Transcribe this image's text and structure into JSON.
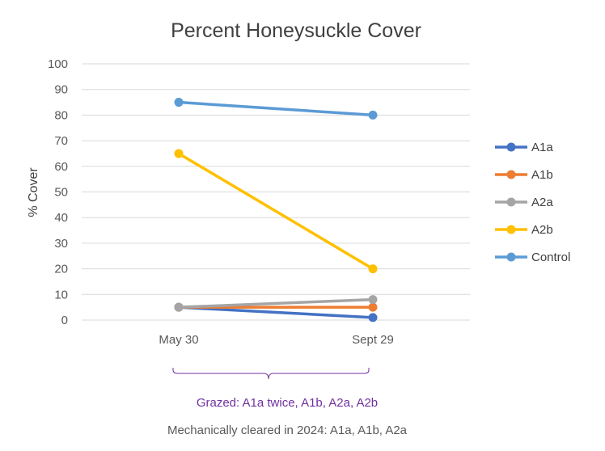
{
  "chart_data": {
    "type": "line",
    "title": "Percent Honeysuckle Cover",
    "ylabel": "% Cover",
    "xlabel": "",
    "categories": [
      "May 30",
      "Sept 29"
    ],
    "ylim": [
      0,
      100
    ],
    "yticks": [
      0,
      10,
      20,
      30,
      40,
      50,
      60,
      70,
      80,
      90,
      100
    ],
    "grid": true,
    "legend_position": "right",
    "series": [
      {
        "name": "A1a",
        "color": "#4472C4",
        "values": [
          5,
          1
        ]
      },
      {
        "name": "A1b",
        "color": "#ED7D31",
        "values": [
          5,
          5
        ]
      },
      {
        "name": "A2a",
        "color": "#A5A5A5",
        "values": [
          5,
          8
        ]
      },
      {
        "name": "A2b",
        "color": "#FFC000",
        "values": [
          65,
          20
        ]
      },
      {
        "name": "Control",
        "color": "#5B9BD5",
        "values": [
          85,
          80
        ]
      }
    ],
    "bracket_note": {
      "text": "Grazed: A1a twice, A1b, A2a, A2b",
      "color": "#7030A0"
    },
    "footnote": {
      "text": "Mechanically cleared in 2024: A1a, A1b, A2a",
      "color": "#595959"
    }
  }
}
